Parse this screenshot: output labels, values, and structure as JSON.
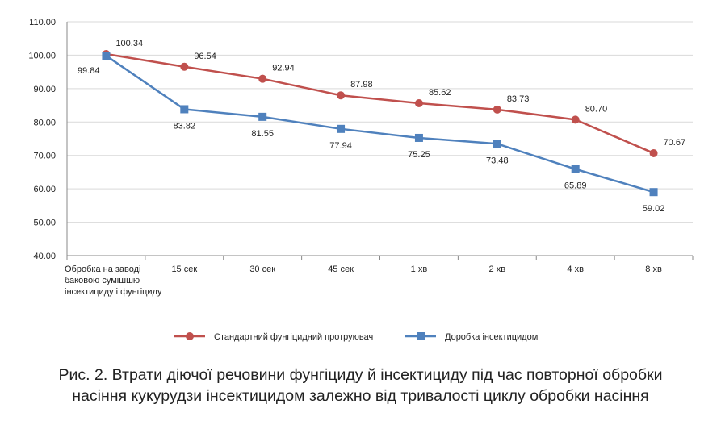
{
  "chart_data": {
    "type": "line",
    "categories": [
      [
        "Обробка на заводі",
        "баковою сумішшю",
        "інсектициду і фунгіциду"
      ],
      [
        "15 сек"
      ],
      [
        "30 сек"
      ],
      [
        "45 сек"
      ],
      [
        "1 хв"
      ],
      [
        "2 хв"
      ],
      [
        "4 хв"
      ],
      [
        "8 хв"
      ]
    ],
    "series": [
      {
        "name": "Стандартний фунгіцидний протруювач",
        "color": "#c0504d",
        "marker": "circle",
        "values": [
          100.34,
          96.54,
          92.94,
          87.98,
          85.62,
          83.73,
          80.7,
          70.67
        ],
        "labels": [
          "100.34",
          "96.54",
          "92.94",
          "87.98",
          "85.62",
          "83.73",
          "80.70",
          "70.67"
        ]
      },
      {
        "name": "Доробка інсектицидом",
        "color": "#4f81bd",
        "marker": "square",
        "values": [
          99.84,
          83.82,
          81.55,
          77.94,
          75.25,
          73.48,
          65.89,
          59.02
        ],
        "labels": [
          "99.84",
          "83.82",
          "81.55",
          "77.94",
          "75.25",
          "73.48",
          "65.89",
          "59.02"
        ]
      }
    ],
    "ylim": [
      40,
      110
    ],
    "yticks": [
      "40.00",
      "50.00",
      "60.00",
      "70.00",
      "80.00",
      "90.00",
      "100.00",
      "110.00"
    ],
    "grid": true,
    "legend_position": "bottom"
  },
  "caption": {
    "line1": "Рис. 2. Втрати діючої речовини фунгіциду й інсектициду під час повторної обробки",
    "line2": "насіння кукурудзи інсектицидом залежно від тривалості циклу обробки насіння"
  }
}
